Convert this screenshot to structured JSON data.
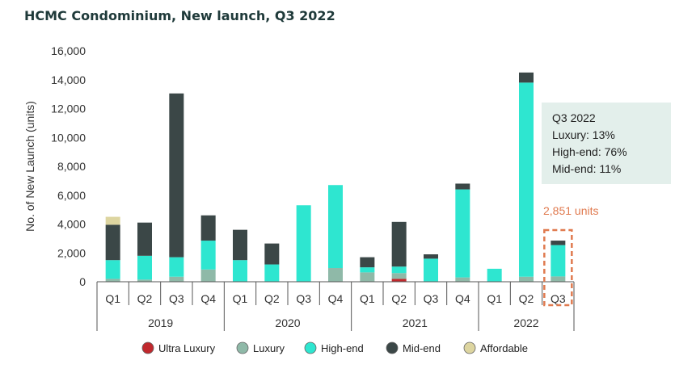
{
  "chart_data": {
    "type": "bar",
    "stacked": true,
    "title": "HCMC Condominium, New launch, Q3 2022",
    "ylabel": "No. of New Launch (units)",
    "xlabel": "",
    "ylim": [
      0,
      16000
    ],
    "yticks": [
      "0",
      "2,000",
      "4,000",
      "6,000",
      "8,000",
      "10,000",
      "12,000",
      "14,000",
      "16,000"
    ],
    "categories": [
      "Q1",
      "Q2",
      "Q3",
      "Q4",
      "Q1",
      "Q2",
      "Q3",
      "Q4",
      "Q1",
      "Q2",
      "Q3",
      "Q4",
      "Q1",
      "Q2",
      "Q3"
    ],
    "years": [
      {
        "label": "2019",
        "count": 4
      },
      {
        "label": "2020",
        "count": 4
      },
      {
        "label": "2021",
        "count": 4
      },
      {
        "label": "2022",
        "count": 3
      }
    ],
    "series": [
      {
        "name": "Ultra Luxury",
        "color": "#c0282d",
        "values": [
          0,
          0,
          0,
          0,
          0,
          0,
          0,
          0,
          0,
          200,
          0,
          0,
          0,
          0,
          0
        ]
      },
      {
        "name": "Luxury",
        "color": "#8fb9a8",
        "values": [
          200,
          150,
          350,
          850,
          0,
          0,
          0,
          950,
          650,
          400,
          0,
          300,
          0,
          350,
          370
        ]
      },
      {
        "name": "High-end",
        "color": "#2ee6d0",
        "values": [
          1300,
          1650,
          1350,
          2000,
          1500,
          1200,
          5300,
          5750,
          350,
          450,
          1600,
          6100,
          900,
          13450,
          2170
        ]
      },
      {
        "name": "Mid-end",
        "color": "#3b4747",
        "values": [
          2450,
          2300,
          11350,
          1750,
          2100,
          1450,
          0,
          0,
          700,
          3100,
          300,
          400,
          0,
          700,
          310
        ]
      },
      {
        "name": "Affordable",
        "color": "#ddd5a0",
        "values": [
          550,
          0,
          0,
          0,
          0,
          0,
          0,
          0,
          0,
          0,
          0,
          0,
          0,
          0,
          0
        ]
      }
    ],
    "legend_position": "bottom",
    "grid": false,
    "annotation_box": {
      "lines": [
        "Q3 2022",
        "Luxury: 13%",
        "High-end: 76%",
        "Mid-end: 11%"
      ],
      "color": "#e3efeb"
    },
    "highlight_label": {
      "text": "2,851 units",
      "color": "#e07a4f"
    }
  }
}
